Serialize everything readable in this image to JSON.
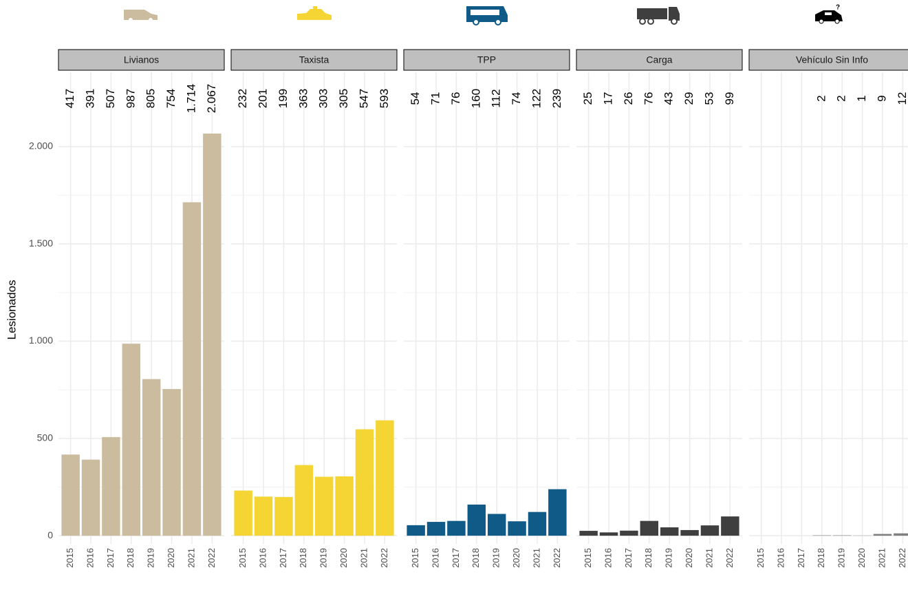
{
  "chart_data": {
    "type": "bar",
    "ylabel": "Lesionados",
    "categories": [
      "2015",
      "2016",
      "2017",
      "2018",
      "2019",
      "2020",
      "2021",
      "2022"
    ],
    "ylim": [
      -42,
      2382
    ],
    "yticks": [
      0,
      500,
      {
        "value": 1000,
        "label": "1.000"
      },
      {
        "value": 1500,
        "label": "1.500"
      },
      {
        "value": 2000,
        "label": "2.000"
      }
    ],
    "grid": true,
    "minor_grid": true,
    "facets": [
      {
        "title": "Livianos",
        "color": "#cbbb9f",
        "values": [
          417,
          391,
          507,
          987,
          805,
          754,
          1714,
          2067
        ],
        "value_labels": [
          "417",
          "391",
          "507",
          "987",
          "805",
          "754",
          "1.714",
          "2.067"
        ]
      },
      {
        "title": "Taxista",
        "color": "#f4d534",
        "values": [
          232,
          201,
          199,
          363,
          303,
          305,
          547,
          593
        ]
      },
      {
        "title": "TPP",
        "color": "#0f5a87",
        "values": [
          54,
          71,
          76,
          160,
          112,
          74,
          122,
          239
        ]
      },
      {
        "title": "Carga",
        "color": "#3f3f3f",
        "values": [
          25,
          17,
          26,
          76,
          43,
          29,
          53,
          99
        ]
      },
      {
        "title": "Vehículo Sin Info",
        "color": "#7f7f7f",
        "values": [
          null,
          null,
          null,
          2,
          2,
          1,
          9,
          12
        ]
      }
    ]
  }
}
